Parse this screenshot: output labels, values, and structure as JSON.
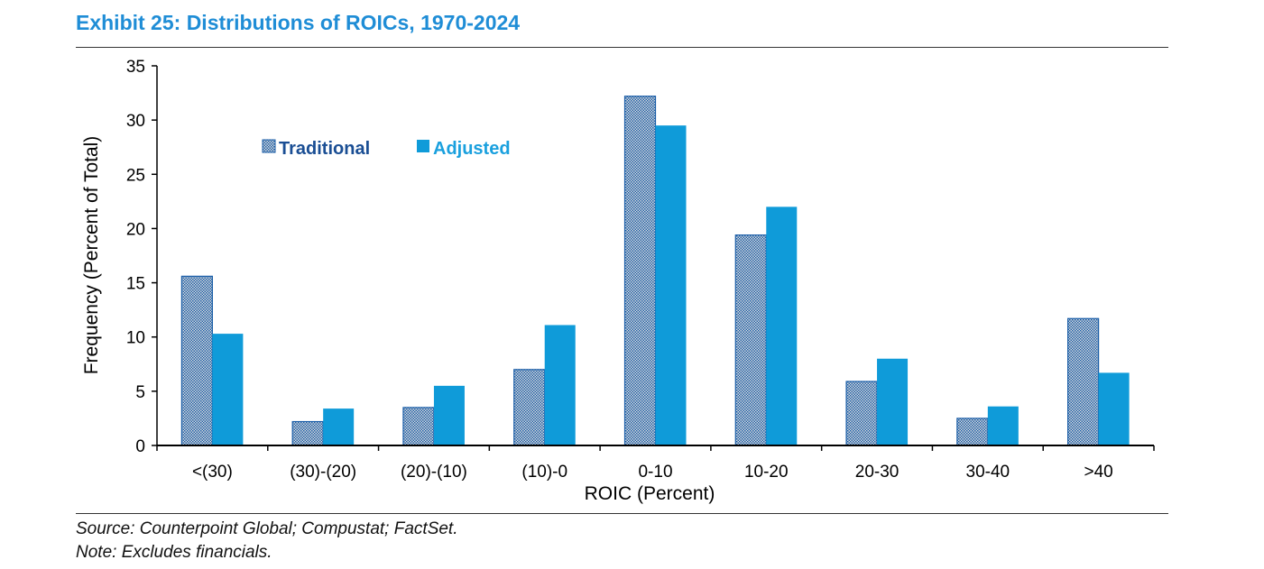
{
  "header": {
    "title": "Exhibit 25: Distributions of ROICs, 1970-2024"
  },
  "footer": {
    "source": "Source: Counterpoint Global; Compustat; FactSet.",
    "note": "Note: Excludes financials."
  },
  "colors": {
    "title": "#1f8dd6",
    "traditional_fill": "#dcdcdc",
    "traditional_pattern": "#1b5ea8",
    "adjusted": "#0f9bd9",
    "legend_traditional_text": "#1a4e94",
    "legend_adjusted_text": "#1aa0de"
  },
  "chart_data": {
    "type": "bar",
    "xlabel": "ROIC (Percent)",
    "ylabel": "Frequency (Percent of Total)",
    "categories": [
      "<(30)",
      "(30)-(20)",
      "(20)-(10)",
      "(10)-0",
      "0-10",
      "10-20",
      "20-30",
      "30-40",
      ">40"
    ],
    "series": [
      {
        "name": "Traditional",
        "values": [
          15.6,
          2.2,
          3.5,
          7.0,
          32.2,
          19.4,
          5.9,
          2.5,
          11.7
        ]
      },
      {
        "name": "Adjusted",
        "values": [
          10.3,
          3.4,
          5.5,
          11.1,
          29.5,
          22.0,
          8.0,
          3.6,
          6.7
        ]
      }
    ],
    "ylim": [
      0,
      35
    ],
    "yticks": [
      0,
      5,
      10,
      15,
      20,
      25,
      30,
      35
    ],
    "grid": false,
    "legend_position": "top-left"
  }
}
